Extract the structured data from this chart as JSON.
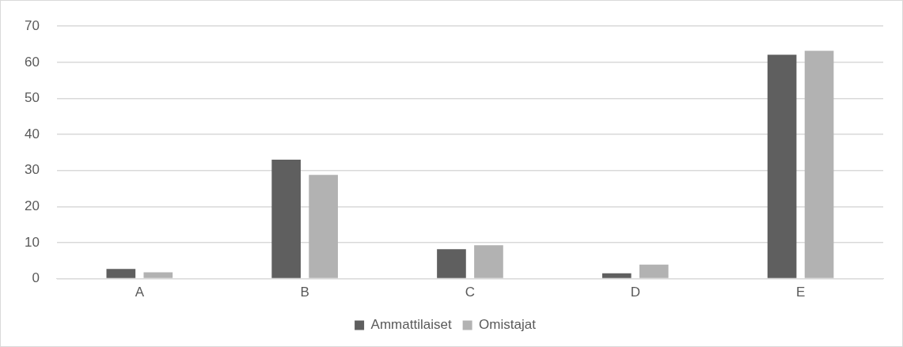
{
  "chart_data": {
    "type": "bar",
    "categories": [
      "A",
      "B",
      "C",
      "D",
      "E"
    ],
    "series": [
      {
        "name": "Ammattilaiset",
        "color": "#5f5f5f",
        "values": [
          2.7,
          33,
          8.2,
          1.5,
          62.1
        ]
      },
      {
        "name": "Omistajat",
        "color": "#b2b2b2",
        "values": [
          1.8,
          28.8,
          9.3,
          3.9,
          63.2
        ]
      }
    ],
    "ylim": [
      0,
      70
    ],
    "yticks": [
      0,
      10,
      20,
      30,
      40,
      50,
      60,
      70
    ],
    "grid": "y",
    "legend": "bottom"
  }
}
